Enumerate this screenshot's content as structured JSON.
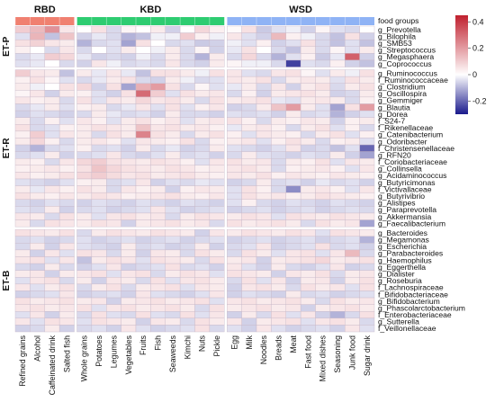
{
  "chart_data": {
    "type": "heatmap",
    "column_groups": [
      {
        "name": "RBD",
        "color": "#f08070",
        "columns": [
          "Refined grains",
          "Alcohol",
          "Caffeinated drink",
          "Salted fish"
        ]
      },
      {
        "name": "KBD",
        "color": "#2ecc71",
        "columns": [
          "Whole grains",
          "Potatoes",
          "Legumes",
          "Vegetables",
          "Fruits",
          "Fish",
          "Seaweeds",
          "Kimchi",
          "Nuts",
          "Pickle"
        ]
      },
      {
        "name": "WSD",
        "color": "#8fb3f5",
        "columns": [
          "Egg",
          "Milk",
          "Noodles",
          "Breads",
          "Meat",
          "Fast food",
          "Mixed dishes",
          "Seasoning",
          "Junk food",
          "Sugar drink"
        ]
      }
    ],
    "header_row_label": "food groups",
    "row_groups": [
      {
        "name": "ET-P",
        "rows": [
          "g_Prevotella",
          "g_Bilophila",
          "g_SMB53",
          "g_Streptococcus",
          "g_Megasphaera",
          "g_Coprococcus"
        ]
      },
      {
        "name": "ET-R",
        "rows": [
          "g_Ruminococcus",
          "f_Ruminococcaceae",
          "g_Clostridium",
          "g_Oscillospira",
          "g_Gemmiger",
          "g_Blautia",
          "g_Dorea",
          "f_S24-7",
          "f_Rikenellaceae",
          "g_Catenibacterium",
          "g_Odoribacter",
          "f_Christensenellaceae",
          "g_RFN20",
          "f_Coriobacteriaceae",
          "g_Collinsella",
          "g_Acidaminococcus",
          "g_Butyricimonas",
          "f_Victivallaceae",
          "g_Butyrivibrio",
          "g_Alistipes",
          "g_Paraprevotella",
          "g_Akkermansia",
          "g_Faecalibacterium"
        ]
      },
      {
        "name": "ET-B",
        "rows": [
          "g_Bacteroides",
          "g_Megamonas",
          "g_Escherichia",
          "g_Parabacteroides",
          "g_Haemophilus",
          "g_Eggerthella",
          "g_Dialister",
          "g_Roseburia",
          "f_Lachnospiraceae",
          "f_Bifidobacteriaceae",
          "g_Bifidobacterium",
          "g_Phascolarctobacterium",
          "f_Enterobacteriaceae",
          "g_Sutterella",
          "f_Veillonellaceae"
        ]
      }
    ],
    "values": [
      [
        0.1,
        0.14,
        0.22,
        0.05,
        0.0,
        0.06,
        -0.05,
        0.02,
        0.0,
        0.04,
        -0.06,
        0.0,
        0.08,
        0.03,
        0.01,
        0.06,
        -0.07,
        -0.04,
        -0.02,
        -0.06,
        0.02,
        -0.04,
        -0.05,
        0.0
      ],
      [
        -0.04,
        0.15,
        -0.08,
        0.12,
        -0.06,
        -0.03,
        -0.05,
        -0.1,
        -0.08,
        -0.02,
        -0.02,
        0.1,
        0.03,
        -0.02,
        0.05,
        -0.04,
        -0.06,
        0.14,
        0.03,
        -0.02,
        -0.05,
        -0.08,
        0.06,
        -0.06
      ],
      [
        0.06,
        0.09,
        0.05,
        0.04,
        -0.1,
        -0.05,
        -0.04,
        -0.12,
        0.06,
        0.0,
        -0.05,
        -0.04,
        -0.07,
        -0.06,
        -0.02,
        -0.04,
        0.03,
        -0.06,
        -0.04,
        0.06,
        -0.05,
        -0.08,
        -0.04,
        -0.08
      ],
      [
        0.03,
        0.0,
        -0.05,
        0.05,
        -0.05,
        0.0,
        -0.04,
        0.04,
        0.0,
        -0.02,
        0.04,
        -0.05,
        0.02,
        -0.06,
        -0.03,
        0.06,
        0.0,
        -0.05,
        -0.08,
        0.04,
        -0.05,
        0.02,
        -0.04,
        0.04
      ],
      [
        -0.05,
        -0.03,
        0.1,
        0.08,
        -0.03,
        -0.06,
        -0.05,
        -0.06,
        -0.02,
        -0.05,
        0.04,
        -0.05,
        -0.1,
        0.04,
        -0.05,
        0.08,
        -0.05,
        -0.1,
        -0.04,
        0.03,
        -0.07,
        -0.03,
        0.32,
        -0.06
      ],
      [
        -0.04,
        -0.03,
        0.0,
        -0.05,
        -0.06,
        0.05,
        -0.02,
        -0.05,
        -0.04,
        -0.05,
        0.05,
        -0.05,
        -0.06,
        0.04,
        0.02,
        -0.02,
        -0.02,
        -0.05,
        -0.25,
        -0.04,
        -0.05,
        0.03,
        -0.06,
        -0.08
      ],
      [
        0.1,
        0.05,
        0.04,
        -0.08,
        0.04,
        -0.03,
        0.05,
        -0.03,
        -0.08,
        0.06,
        0.06,
        0.04,
        -0.02,
        0.06,
        0.05,
        -0.04,
        -0.05,
        0.05,
        0.06,
        0.02,
        -0.04,
        0.04,
        -0.02,
        0.06
      ],
      [
        0.03,
        0.06,
        0.02,
        -0.04,
        -0.05,
        -0.03,
        0.04,
        0.06,
        -0.05,
        -0.06,
        0.04,
        -0.02,
        -0.05,
        -0.04,
        0.05,
        0.04,
        0.06,
        -0.05,
        0.04,
        0.05,
        0.04,
        -0.04,
        0.06,
        0.04
      ],
      [
        0.04,
        -0.02,
        0.0,
        0.06,
        0.08,
        -0.06,
        0.06,
        -0.12,
        0.16,
        0.2,
        0.06,
        -0.05,
        0.02,
        -0.04,
        -0.03,
        0.04,
        -0.05,
        0.05,
        -0.06,
        0.04,
        0.06,
        -0.05,
        0.04,
        0.06
      ],
      [
        0.02,
        0.05,
        -0.06,
        0.04,
        0.03,
        -0.04,
        -0.06,
        0.06,
        0.3,
        0.1,
        -0.04,
        0.06,
        0.04,
        0.05,
        -0.05,
        0.03,
        -0.06,
        0.04,
        0.05,
        0.06,
        0.04,
        -0.06,
        -0.05,
        0.04
      ],
      [
        0.05,
        0.03,
        0.04,
        -0.05,
        0.06,
        -0.04,
        0.05,
        0.04,
        0.08,
        0.05,
        0.06,
        0.04,
        -0.05,
        0.06,
        0.04,
        0.05,
        0.06,
        -0.03,
        -0.04,
        0.04,
        0.05,
        0.04,
        -0.05,
        0.03
      ],
      [
        -0.05,
        -0.03,
        0.04,
        -0.04,
        0.03,
        0.04,
        -0.05,
        -0.03,
        0.05,
        -0.04,
        0.06,
        -0.04,
        0.03,
        0.05,
        -0.06,
        -0.05,
        0.04,
        0.12,
        0.2,
        0.04,
        -0.04,
        -0.12,
        0.06,
        0.2
      ],
      [
        -0.06,
        -0.04,
        -0.05,
        -0.06,
        -0.05,
        0.04,
        -0.03,
        -0.05,
        -0.04,
        -0.06,
        0.04,
        -0.05,
        -0.05,
        -0.06,
        -0.04,
        -0.05,
        -0.04,
        -0.06,
        0.04,
        -0.05,
        -0.04,
        -0.1,
        -0.06,
        -0.04
      ],
      [
        0.04,
        -0.05,
        0.03,
        -0.04,
        0.05,
        0.03,
        -0.04,
        0.04,
        0.06,
        0.03,
        0.05,
        -0.04,
        0.04,
        0.05,
        0.06,
        0.03,
        -0.05,
        0.04,
        0.03,
        0.05,
        0.04,
        -0.06,
        0.03,
        0.04
      ],
      [
        0.06,
        -0.05,
        -0.04,
        0.03,
        0.04,
        0.06,
        0.05,
        0.04,
        0.12,
        0.05,
        0.06,
        0.04,
        0.05,
        0.03,
        -0.03,
        0.04,
        0.05,
        0.03,
        -0.05,
        0.04,
        0.06,
        -0.04,
        0.03,
        -0.05
      ],
      [
        0.03,
        0.1,
        -0.04,
        0.05,
        0.04,
        -0.05,
        0.06,
        0.04,
        0.25,
        0.06,
        0.04,
        -0.05,
        0.04,
        0.06,
        0.03,
        -0.04,
        0.05,
        0.04,
        0.03,
        -0.05,
        0.04,
        0.06,
        -0.04,
        0.03
      ],
      [
        0.04,
        0.08,
        0.03,
        -0.05,
        0.04,
        0.05,
        0.03,
        -0.04,
        0.05,
        0.04,
        0.03,
        0.06,
        -0.05,
        0.03,
        0.04,
        0.05,
        -0.04,
        0.03,
        0.06,
        0.04,
        -0.05,
        0.03,
        0.04,
        -0.04
      ],
      [
        -0.06,
        -0.1,
        -0.05,
        -0.04,
        0.03,
        -0.05,
        -0.04,
        -0.06,
        0.04,
        -0.05,
        -0.03,
        -0.06,
        -0.05,
        0.04,
        -0.04,
        -0.05,
        -0.06,
        -0.04,
        0.05,
        -0.06,
        -0.05,
        -0.08,
        -0.04,
        -0.2
      ],
      [
        -0.05,
        -0.04,
        0.04,
        -0.06,
        -0.05,
        -0.04,
        0.05,
        -0.05,
        -0.06,
        -0.04,
        0.04,
        -0.05,
        -0.04,
        -0.06,
        -0.05,
        0.04,
        -0.04,
        -0.05,
        -0.06,
        -0.04,
        -0.05,
        0.04,
        -0.06,
        -0.12
      ],
      [
        0.04,
        0.03,
        -0.05,
        0.05,
        0.08,
        0.1,
        0.06,
        0.05,
        0.04,
        0.06,
        0.05,
        0.03,
        -0.04,
        0.05,
        0.06,
        0.04,
        0.05,
        -0.05,
        0.04,
        0.03,
        0.06,
        -0.04,
        0.05,
        0.04
      ],
      [
        0.03,
        0.04,
        0.05,
        0.03,
        0.06,
        0.12,
        0.08,
        0.06,
        0.05,
        0.04,
        0.06,
        0.05,
        0.03,
        0.04,
        0.05,
        0.06,
        0.04,
        -0.05,
        0.03,
        0.04,
        0.05,
        0.03,
        -0.04,
        0.05
      ],
      [
        0.05,
        0.03,
        0.04,
        0.06,
        0.08,
        0.1,
        0.07,
        0.05,
        0.06,
        0.04,
        0.05,
        0.06,
        0.04,
        0.03,
        0.05,
        0.04,
        0.06,
        0.03,
        0.05,
        0.04,
        0.03,
        0.05,
        0.04,
        0.03
      ],
      [
        -0.04,
        -0.05,
        -0.06,
        -0.04,
        0.03,
        0.04,
        -0.05,
        -0.04,
        0.05,
        -0.06,
        -0.04,
        -0.05,
        -0.03,
        -0.04,
        -0.06,
        -0.05,
        0.04,
        -0.05,
        -0.04,
        -0.06,
        -0.03,
        -0.05,
        -0.04,
        -0.06
      ],
      [
        0.04,
        -0.03,
        0.05,
        0.03,
        0.06,
        0.04,
        -0.05,
        0.05,
        0.03,
        0.04,
        -0.06,
        0.03,
        0.05,
        0.04,
        -0.04,
        0.06,
        0.03,
        -0.05,
        -0.15,
        0.04,
        0.05,
        0.03,
        -0.04,
        0.05
      ],
      [
        0.06,
        0.04,
        0.03,
        0.05,
        0.04,
        0.06,
        0.05,
        0.03,
        0.04,
        0.05,
        0.06,
        0.04,
        0.03,
        0.05,
        -0.04,
        0.06,
        0.04,
        0.05,
        0.03,
        0.04,
        0.06,
        0.05,
        0.04,
        0.03
      ],
      [
        -0.05,
        -0.06,
        -0.04,
        -0.05,
        -0.06,
        -0.04,
        -0.05,
        -0.06,
        -0.04,
        -0.05,
        -0.06,
        -0.04,
        -0.05,
        -0.06,
        -0.04,
        0.03,
        -0.05,
        -0.06,
        -0.04,
        -0.05,
        -0.06,
        -0.04,
        -0.05,
        -0.06
      ],
      [
        -0.04,
        -0.05,
        0.04,
        -0.06,
        -0.05,
        -0.04,
        -0.06,
        -0.05,
        -0.04,
        0.05,
        -0.04,
        -0.06,
        -0.05,
        -0.04,
        -0.06,
        -0.05,
        -0.04,
        -0.06,
        -0.05,
        -0.04,
        -0.06,
        -0.05,
        -0.04,
        -0.05
      ],
      [
        0.05,
        0.04,
        -0.05,
        0.06,
        0.04,
        -0.04,
        0.05,
        0.06,
        0.04,
        0.05,
        -0.05,
        0.04,
        0.06,
        0.05,
        0.04,
        0.06,
        0.05,
        -0.04,
        0.06,
        0.05,
        0.04,
        0.06,
        0.05,
        0.04
      ],
      [
        0.04,
        -0.05,
        0.06,
        0.05,
        0.04,
        0.06,
        0.05,
        -0.06,
        0.04,
        0.05,
        0.06,
        0.04,
        0.05,
        -0.05,
        0.06,
        0.04,
        0.05,
        0.06,
        0.04,
        -0.05,
        0.06,
        0.04,
        0.05,
        -0.12
      ],
      [
        0.06,
        0.05,
        0.04,
        0.06,
        -0.05,
        0.04,
        0.06,
        0.05,
        0.04,
        0.06,
        0.05,
        0.04,
        -0.06,
        0.05,
        0.04,
        0.06,
        0.05,
        0.04,
        0.06,
        0.05,
        -0.04,
        0.06,
        0.05,
        0.04
      ],
      [
        -0.05,
        -0.04,
        -0.06,
        -0.05,
        -0.04,
        -0.06,
        -0.05,
        -0.04,
        -0.06,
        -0.05,
        -0.04,
        -0.06,
        -0.05,
        -0.04,
        -0.06,
        -0.05,
        -0.04,
        -0.06,
        -0.05,
        -0.04,
        -0.06,
        -0.05,
        -0.04,
        -0.1
      ],
      [
        -0.05,
        0.04,
        -0.06,
        0.05,
        -0.04,
        -0.05,
        -0.06,
        0.04,
        -0.05,
        -0.04,
        -0.06,
        -0.05,
        0.04,
        -0.06,
        -0.05,
        -0.04,
        0.05,
        -0.06,
        -0.05,
        -0.04,
        0.06,
        -0.05,
        -0.04,
        -0.06
      ],
      [
        0.04,
        -0.06,
        0.05,
        -0.04,
        0.06,
        0.05,
        -0.05,
        0.04,
        -0.06,
        0.05,
        0.04,
        -0.05,
        0.06,
        0.04,
        -0.05,
        0.06,
        0.04,
        -0.04,
        0.05,
        0.06,
        -0.04,
        0.05,
        0.14,
        -0.05
      ],
      [
        0.05,
        0.06,
        -0.04,
        0.05,
        -0.08,
        0.04,
        0.06,
        0.05,
        -0.04,
        0.06,
        0.05,
        0.04,
        -0.05,
        0.06,
        0.04,
        0.05,
        -0.06,
        0.04,
        0.05,
        0.06,
        0.08,
        0.04,
        0.05,
        0.06
      ],
      [
        -0.05,
        -0.06,
        0.04,
        -0.05,
        -0.06,
        -0.04,
        0.05,
        -0.06,
        -0.05,
        -0.04,
        0.06,
        -0.05,
        -0.04,
        -0.06,
        0.05,
        -0.04,
        -0.06,
        0.04,
        -0.05,
        -0.06,
        -0.04,
        0.05,
        -0.06,
        -0.05
      ],
      [
        0.04,
        0.05,
        -0.06,
        0.04,
        0.05,
        0.06,
        -0.04,
        0.05,
        0.06,
        -0.05,
        0.04,
        0.06,
        0.05,
        -0.04,
        0.06,
        0.05,
        0.04,
        -0.06,
        0.05,
        0.04,
        0.06,
        -0.05,
        0.04,
        0.05
      ],
      [
        -0.04,
        0.05,
        0.06,
        -0.05,
        0.04,
        -0.06,
        0.05,
        0.04,
        -0.05,
        0.06,
        -0.04,
        0.05,
        0.06,
        0.04,
        -0.05,
        0.06,
        -0.04,
        0.05,
        -0.06,
        0.04,
        0.05,
        -0.06,
        0.04,
        0.06
      ],
      [
        0.05,
        -0.04,
        0.04,
        0.06,
        -0.05,
        0.04,
        0.06,
        -0.05,
        0.04,
        0.05,
        0.06,
        -0.04,
        0.05,
        0.04,
        -0.06,
        0.05,
        0.06,
        0.04,
        -0.05,
        0.06,
        0.04,
        0.05,
        -0.04,
        0.06
      ],
      [
        -0.06,
        -0.05,
        -0.04,
        0.05,
        -0.06,
        -0.05,
        -0.04,
        -0.06,
        0.05,
        -0.04,
        -0.05,
        -0.06,
        -0.04,
        0.05,
        -0.06,
        -0.04,
        -0.05,
        -0.06,
        0.04,
        -0.05,
        -0.04,
        -0.06,
        -0.05,
        -0.04
      ],
      [
        0.06,
        0.04,
        0.05,
        0.06,
        0.04,
        0.05,
        -0.06,
        0.04,
        0.05,
        0.06,
        0.04,
        0.05,
        0.06,
        -0.04,
        0.05,
        0.06,
        0.04,
        0.05,
        0.06,
        0.04,
        -0.05,
        0.06,
        0.04,
        0.05
      ],
      [
        0.05,
        0.06,
        0.04,
        0.05,
        0.06,
        -0.04,
        0.05,
        0.06,
        0.04,
        0.05,
        0.06,
        0.04,
        -0.05,
        0.06,
        0.04,
        0.05,
        0.06,
        0.04,
        0.05,
        -0.06,
        0.04,
        0.05,
        0.06,
        0.04
      ],
      [
        -0.04,
        0.05,
        -0.06,
        0.04,
        -0.05,
        0.06,
        -0.04,
        -0.05,
        0.06,
        -0.04,
        -0.05,
        0.06,
        -0.04,
        0.05,
        -0.06,
        0.04,
        -0.05,
        0.06,
        -0.04,
        0.05,
        -0.06,
        -0.1,
        -0.05,
        0.06
      ],
      [
        0.05,
        -0.04,
        0.06,
        0.05,
        -0.04,
        0.06,
        0.05,
        0.04,
        -0.06,
        0.05,
        0.04,
        -0.05,
        0.06,
        0.04,
        0.05,
        -0.06,
        0.04,
        0.05,
        0.06,
        -0.04,
        0.05,
        0.06,
        0.04,
        -0.05
      ],
      [
        -0.06,
        -0.05,
        0.04,
        -0.06,
        -0.05,
        -0.04,
        -0.06,
        0.05,
        -0.04,
        -0.06,
        -0.05,
        -0.04,
        0.06,
        -0.05,
        -0.04,
        -0.06,
        0.05,
        -0.04,
        -0.06,
        -0.05,
        -0.04,
        -0.06,
        0.05,
        -0.04
      ]
    ],
    "colorbar": {
      "min": -0.3,
      "max": 0.45,
      "ticks": [
        0.4,
        0.2,
        0,
        -0.2
      ],
      "colors": {
        "low": "#1a1a8c",
        "mid": "#ffffff",
        "high": "#c0202e"
      }
    },
    "grid": true
  }
}
